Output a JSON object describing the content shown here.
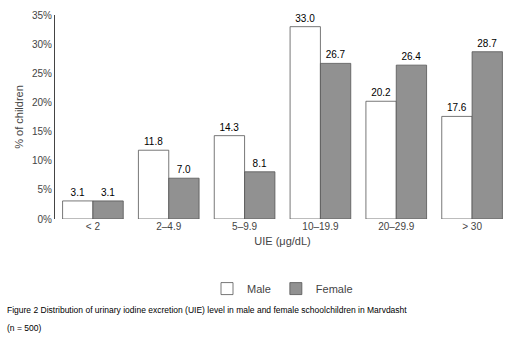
{
  "chart_data": {
    "type": "bar",
    "categories": [
      "< 2",
      "2–4.9",
      "5–9.9",
      "10–19.9",
      "20–29.9",
      "> 30"
    ],
    "series": [
      {
        "name": "Male",
        "color": "#ffffff",
        "values": [
          3.1,
          11.8,
          14.3,
          33.0,
          20.2,
          17.6
        ],
        "value_labels": [
          "3.1",
          "11.8",
          "14.3",
          "33.0",
          "20.2",
          "17.6"
        ]
      },
      {
        "name": "Female",
        "color": "#919191",
        "values": [
          3.1,
          7.0,
          8.1,
          26.7,
          26.4,
          28.7
        ],
        "value_labels": [
          "3.1",
          "7.0",
          "8.1",
          "26.7",
          "26.4",
          "28.7"
        ]
      }
    ],
    "xlabel": "UIE (μg/dL)",
    "ylabel": "% of children",
    "ylim": [
      0,
      35
    ],
    "yticks": [
      {
        "value": 0,
        "label": "0%"
      },
      {
        "value": 5,
        "label": "5%"
      },
      {
        "value": 10,
        "label": "10%"
      },
      {
        "value": 15,
        "label": "15%"
      },
      {
        "value": 20,
        "label": "20%"
      },
      {
        "value": 25,
        "label": "25%"
      },
      {
        "value": 30,
        "label": "30%"
      },
      {
        "value": 35,
        "label": "35%"
      }
    ],
    "data_labels": true,
    "grid": false,
    "legend": "bottom",
    "annotations": [
      "Figure 2 Distribution of urinary iodine excretion (UIE) level in male and female schoolchildren in Marvdasht",
      "(n = 500)"
    ]
  }
}
